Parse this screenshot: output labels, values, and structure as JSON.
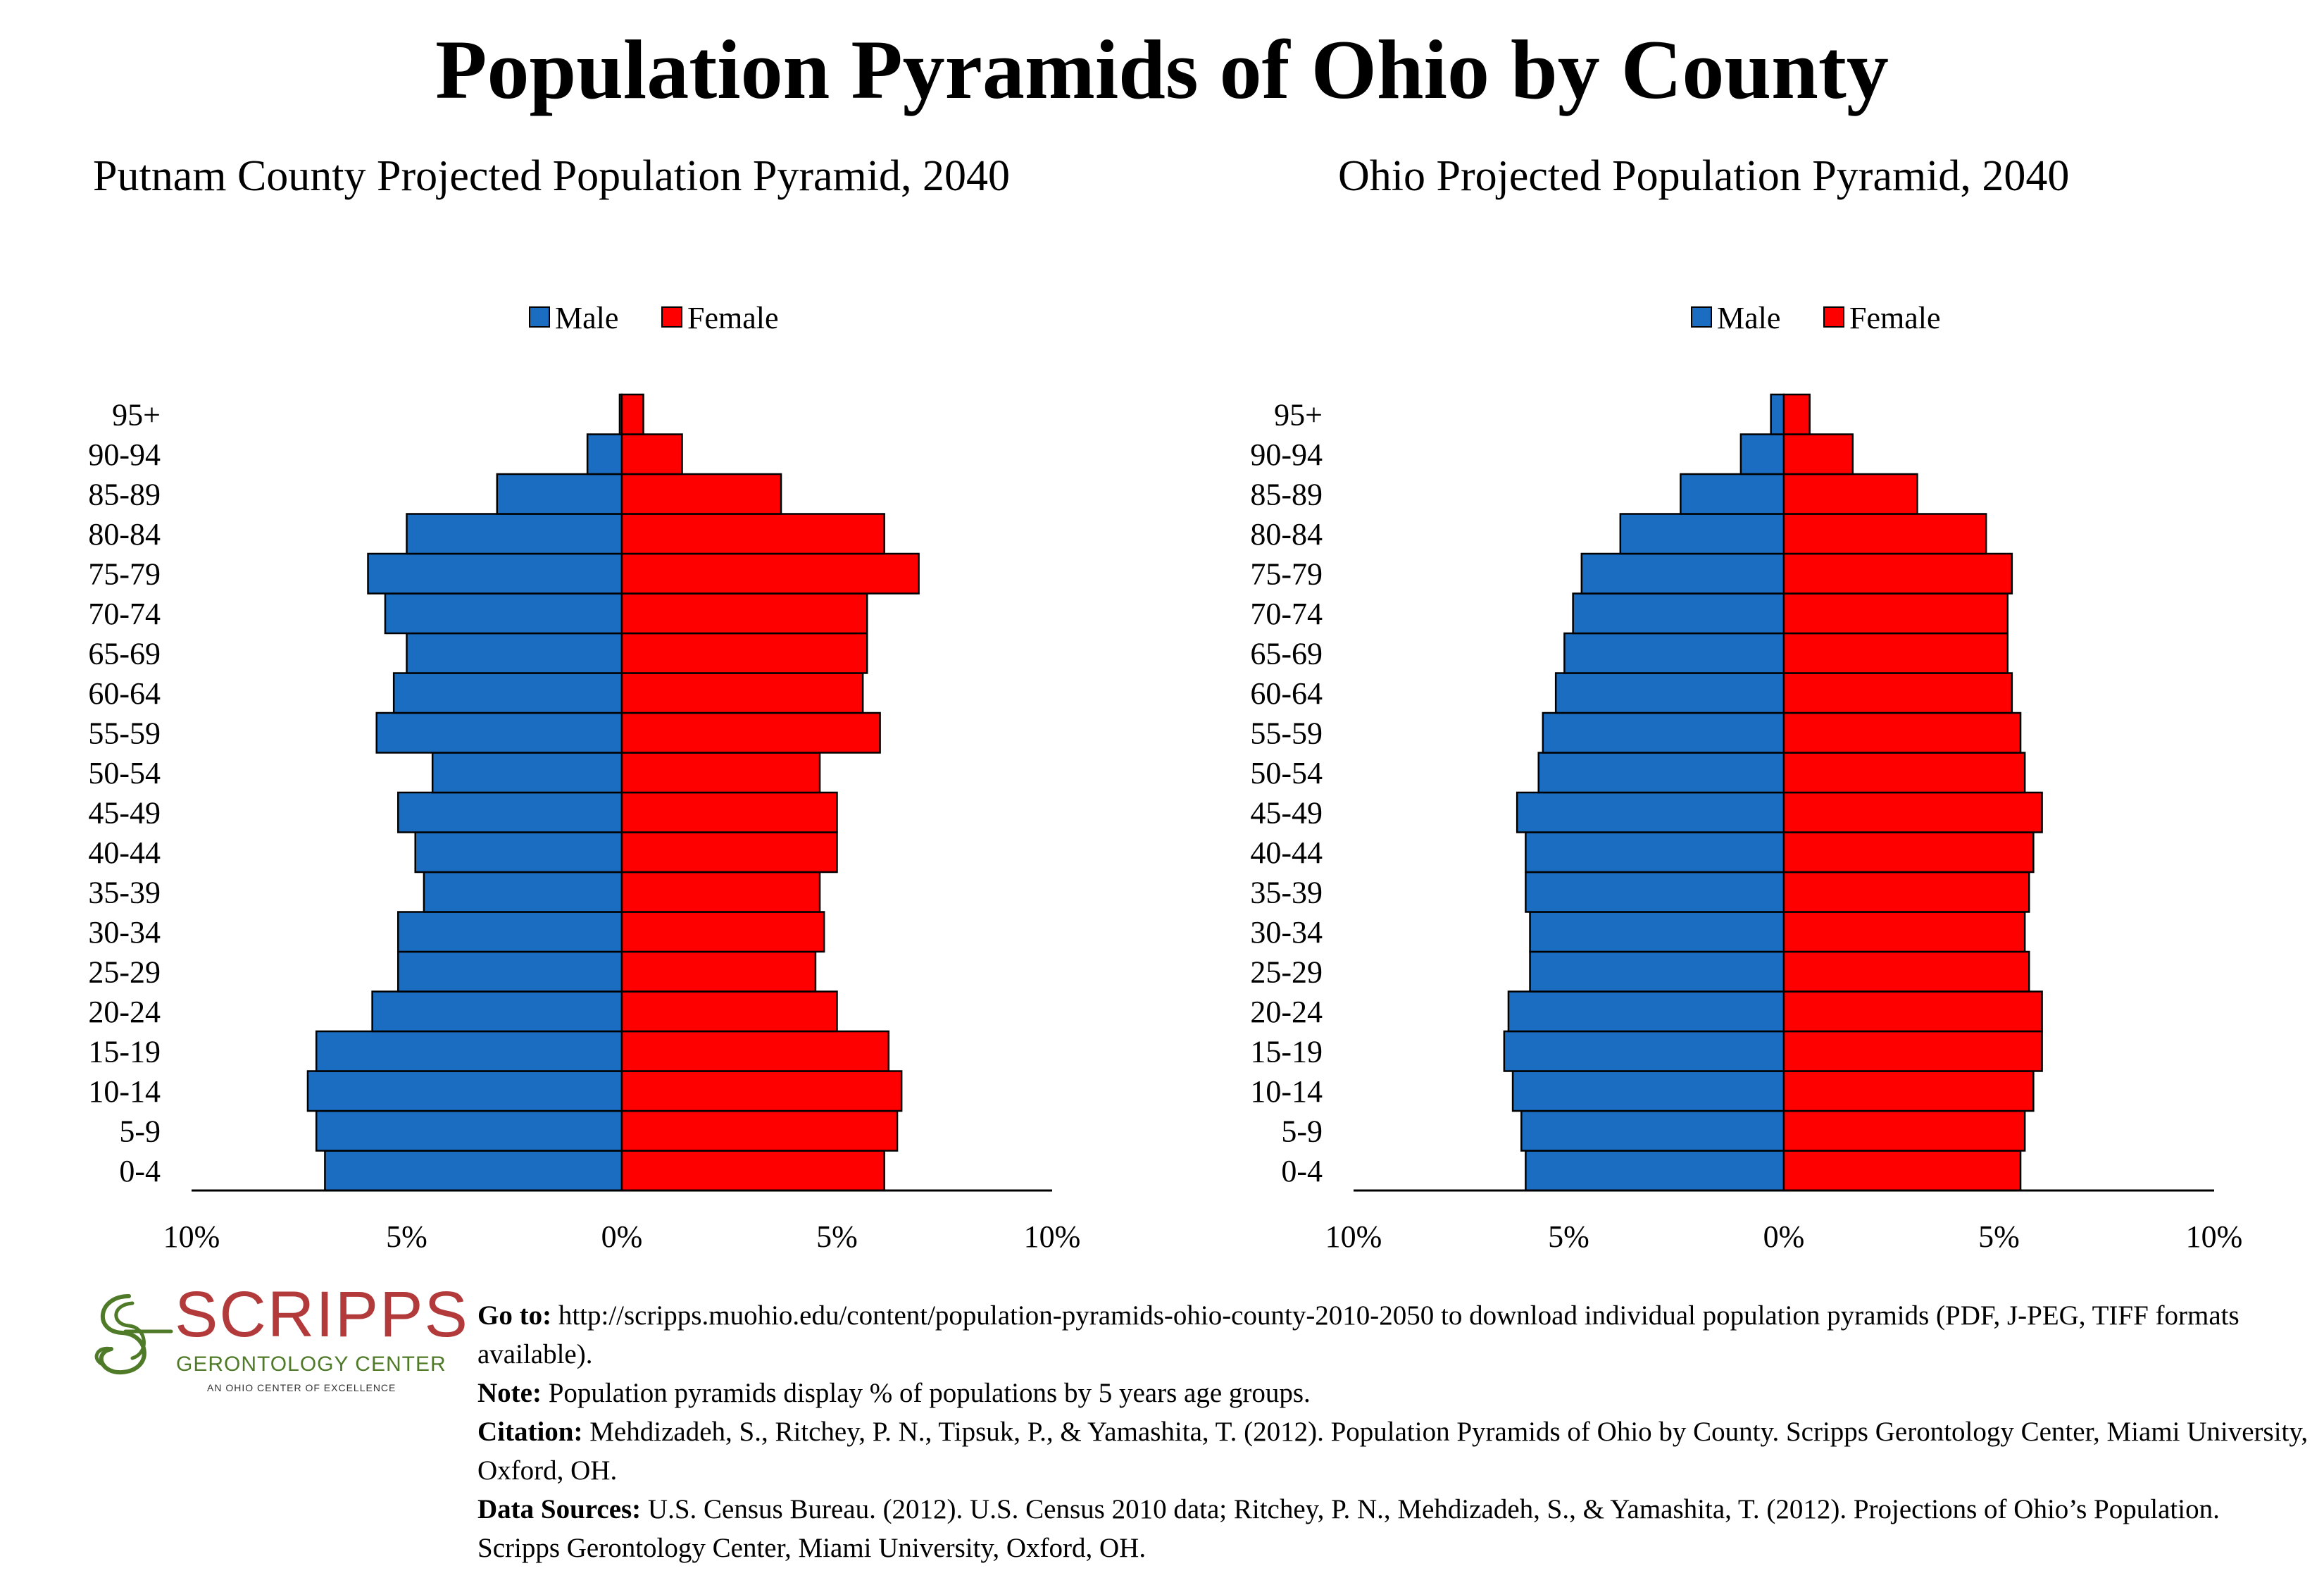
{
  "title": "Population Pyramids of Ohio by County",
  "colors": {
    "male": "#1b6dc1",
    "female": "#ff0000",
    "outline": "#000000"
  },
  "chart_data": [
    {
      "type": "bar",
      "title": "Putnam County Projected Population Pyramid, 2040",
      "legend": {
        "placement": "top-center",
        "entries": [
          "Male",
          "Female"
        ]
      },
      "categories": [
        "0-4",
        "5-9",
        "10-14",
        "15-19",
        "20-24",
        "25-29",
        "30-34",
        "35-39",
        "40-44",
        "45-49",
        "50-54",
        "55-59",
        "60-64",
        "65-69",
        "70-74",
        "75-79",
        "80-84",
        "85-89",
        "90-94",
        "95+"
      ],
      "series": [
        {
          "name": "Male",
          "values": [
            6.9,
            7.1,
            7.3,
            7.1,
            5.8,
            5.2,
            5.2,
            4.6,
            4.8,
            5.2,
            4.4,
            5.7,
            5.3,
            5.0,
            5.5,
            5.9,
            5.0,
            2.9,
            0.8,
            0.05
          ]
        },
        {
          "name": "Female",
          "values": [
            6.1,
            6.4,
            6.5,
            6.2,
            5.0,
            4.5,
            4.7,
            4.6,
            5.0,
            5.0,
            4.6,
            6.0,
            5.6,
            5.7,
            5.7,
            6.9,
            6.1,
            3.7,
            1.4,
            0.5
          ]
        }
      ],
      "xlim": [
        -10,
        10
      ],
      "tick_labels": [
        "10%",
        "5%",
        "0%",
        "5%",
        "10%"
      ],
      "grid": false
    },
    {
      "type": "bar",
      "title": "Ohio Projected Population Pyramid, 2040",
      "legend": {
        "placement": "top-center",
        "entries": [
          "Male",
          "Female"
        ]
      },
      "categories": [
        "0-4",
        "5-9",
        "10-14",
        "15-19",
        "20-24",
        "25-29",
        "30-34",
        "35-39",
        "40-44",
        "45-49",
        "50-54",
        "55-59",
        "60-64",
        "65-69",
        "70-74",
        "75-79",
        "80-84",
        "85-89",
        "90-94",
        "95+"
      ],
      "series": [
        {
          "name": "Male",
          "values": [
            6.0,
            6.1,
            6.3,
            6.5,
            6.4,
            5.9,
            5.9,
            6.0,
            6.0,
            6.2,
            5.7,
            5.6,
            5.3,
            5.1,
            4.9,
            4.7,
            3.8,
            2.4,
            1.0,
            0.3
          ]
        },
        {
          "name": "Female",
          "values": [
            5.5,
            5.6,
            5.8,
            6.0,
            6.0,
            5.7,
            5.6,
            5.7,
            5.8,
            6.0,
            5.6,
            5.5,
            5.3,
            5.2,
            5.2,
            5.3,
            4.7,
            3.1,
            1.6,
            0.6
          ]
        }
      ],
      "xlim": [
        -10,
        10
      ],
      "tick_labels": [
        "10%",
        "5%",
        "0%",
        "5%",
        "10%"
      ],
      "grid": false
    }
  ],
  "logo": {
    "wordmark": "SCRIPPS",
    "subtitle": "GERONTOLOGY CENTER",
    "tagline": "AN OHIO CENTER OF EXCELLENCE"
  },
  "notes": {
    "goto_label": "Go to:",
    "goto_text": " http://scripps.muohio.edu/content/population-pyramids-ohio-county-2010-2050 to download individual population pyramids (PDF, J-PEG, TIFF formats available).",
    "note_label": "Note:",
    "note_text": " Population pyramids display % of populations by 5 years age groups.",
    "citation_label": "Citation:",
    "citation_text": " Mehdizadeh, S., Ritchey, P. N., Tipsuk, P., & Yamashita, T. (2012). Population Pyramids of Ohio by County. Scripps Gerontology Center, Miami University, Oxford, OH.",
    "sources_label": "Data Sources:",
    "sources_text": " U.S. Census Bureau. (2012). U.S. Census 2010 data; Ritchey, P. N., Mehdizadeh, S., & Yamashita, T. (2012). Projections of Ohio’s Population. Scripps Gerontology Center, Miami University, Oxford, OH."
  }
}
